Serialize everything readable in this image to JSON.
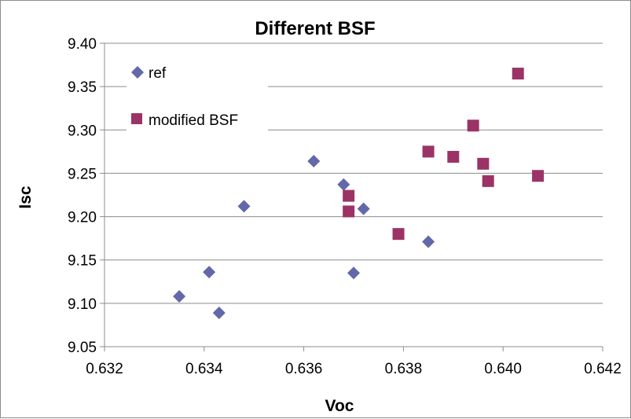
{
  "chart_data": {
    "type": "scatter",
    "title": "Different BSF",
    "xlabel": "Voc",
    "ylabel": "Isc",
    "xlim": [
      0.632,
      0.642
    ],
    "ylim": [
      9.05,
      9.4
    ],
    "x_ticks": [
      "0.632",
      "0.634",
      "0.636",
      "0.638",
      "0.640",
      "0.642"
    ],
    "y_ticks": [
      "9.05",
      "9.10",
      "9.15",
      "9.20",
      "9.25",
      "9.30",
      "9.35",
      "9.40"
    ],
    "grid": "horizontal",
    "legend_position": "top-left",
    "series": [
      {
        "name": "ref",
        "marker": "diamond",
        "color": "#6268A8",
        "points": [
          {
            "x": 0.6335,
            "y": 9.108
          },
          {
            "x": 0.6341,
            "y": 9.136
          },
          {
            "x": 0.6343,
            "y": 9.089
          },
          {
            "x": 0.6348,
            "y": 9.212
          },
          {
            "x": 0.6362,
            "y": 9.264
          },
          {
            "x": 0.6368,
            "y": 9.237
          },
          {
            "x": 0.637,
            "y": 9.135
          },
          {
            "x": 0.6372,
            "y": 9.209
          },
          {
            "x": 0.6385,
            "y": 9.171
          }
        ]
      },
      {
        "name": "modified BSF",
        "marker": "square",
        "color": "#9B3366",
        "points": [
          {
            "x": 0.6369,
            "y": 9.224
          },
          {
            "x": 0.6369,
            "y": 9.206
          },
          {
            "x": 0.6379,
            "y": 9.18
          },
          {
            "x": 0.6385,
            "y": 9.275
          },
          {
            "x": 0.639,
            "y": 9.269
          },
          {
            "x": 0.6394,
            "y": 9.305
          },
          {
            "x": 0.6396,
            "y": 9.261
          },
          {
            "x": 0.6397,
            "y": 9.241
          },
          {
            "x": 0.6403,
            "y": 9.365
          },
          {
            "x": 0.6407,
            "y": 9.247
          }
        ]
      }
    ]
  }
}
